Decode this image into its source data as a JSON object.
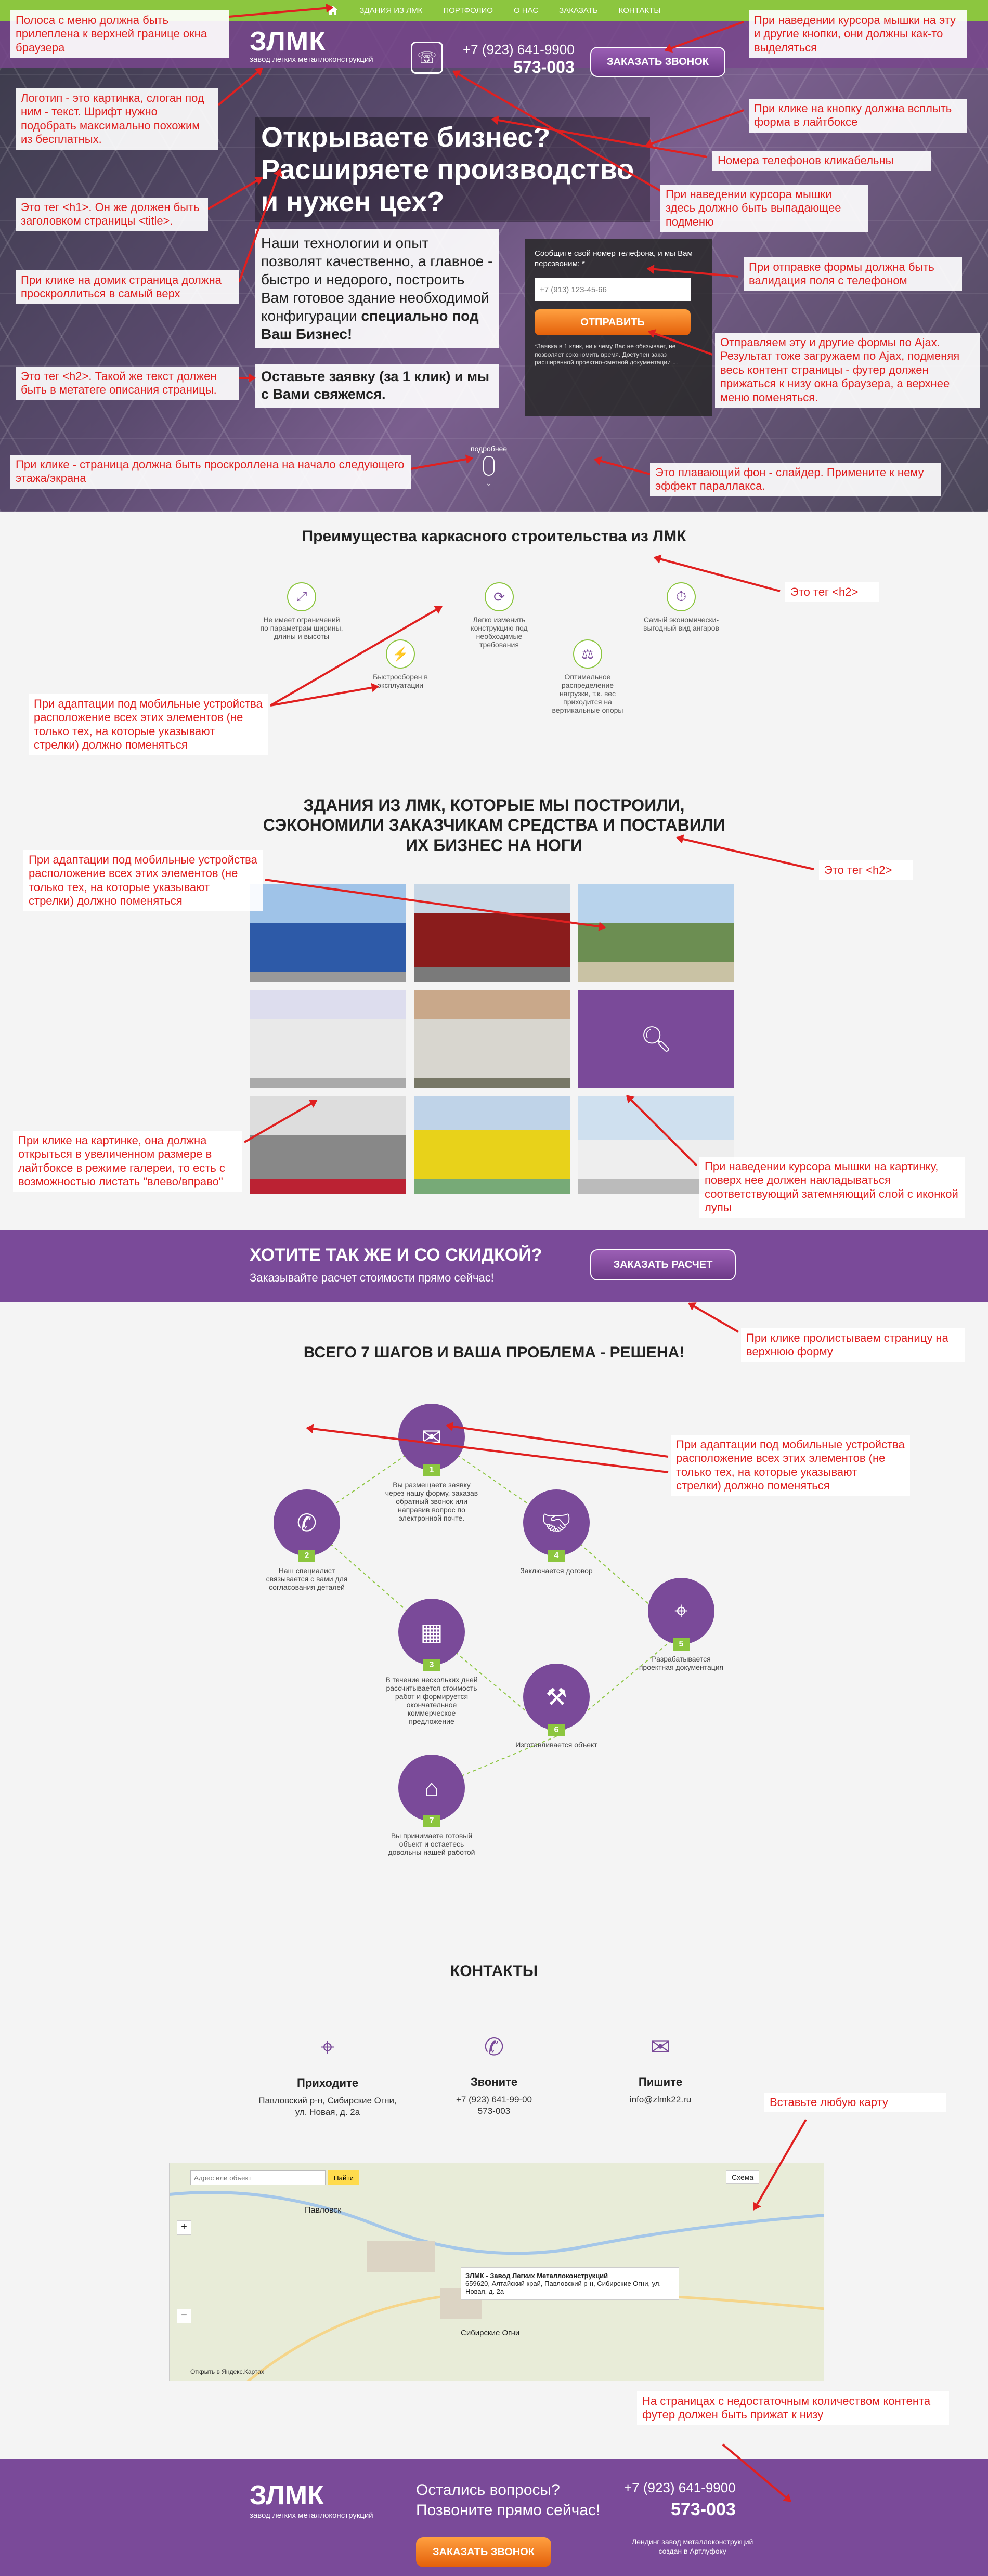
{
  "topnav": {
    "items": [
      "ЗДАНИЯ ИЗ ЛМК",
      "ПОРТФОЛИО",
      "О НАС",
      "ЗАКАЗАТЬ",
      "КОНТАКТЫ"
    ]
  },
  "header": {
    "logo_mark": "ЗЛМК",
    "slogan": "завод легких металлоконструкций",
    "phone1": "+7 (923) 641-9900",
    "phone2": "573-003",
    "call_button": "ЗАКАЗАТЬ ЗВОНОК"
  },
  "hero": {
    "h1": "Открываете бизнес? Расширяете производство и нужен цех?",
    "text1": "Наши технологии и опыт позволят качественно, а главное - быстро и недорого, построить Вам готовое здание необходимой конфигурации ",
    "text1_bold": "специально под Ваш Бизнес!",
    "text2": "Оставьте заявку (за 1 клик) и мы с Вами свяжемся.",
    "form_title": "Сообщите свой номер телефона, и мы Вам перезвоним: *",
    "form_placeholder": "+7 (913) 123-45-66",
    "form_button": "ОТПРАВИТЬ",
    "form_note": "*Заявка в 1 клик, ни к чему Вас не обязывает, не позволяет сэкономить время. Доступен заказ расширенной проектно-сметной документации ...",
    "scroll_label": "подробнее"
  },
  "advantages": {
    "title": "Преимущества каркасного строительства из ЛМК",
    "items": [
      "Не имеет ограничений по параметрам ширины, длины и высоты",
      "Быстросборен в эксплуатации",
      "Легко изменить конструкцию под необходимые требования",
      "Оптимальное распределение нагрузки, т.к. вес приходится на вертикальные опоры",
      "Самый экономически-выгодный вид ангаров"
    ]
  },
  "portfolio": {
    "title": "ЗДАНИЯ ИЗ ЛМК, КОТОРЫЕ МЫ ПОСТРОИЛИ, СЭКОНОМИЛИ ЗАКАЗЧИКАМ СРЕДСТВА И ПОСТАВИЛИ ИХ БИЗНЕС НА НОГИ"
  },
  "cta": {
    "title": "ХОТИТЕ ТАК ЖЕ И СО СКИДКОЙ?",
    "subtitle": "Заказывайте расчет стоимости прямо сейчас!",
    "button": "ЗАКАЗАТЬ РАСЧЕТ"
  },
  "steps": {
    "title": "ВСЕГО 7 ШАГОВ И ВАША ПРОБЛЕМА - РЕШЕНА!",
    "items": [
      {
        "num": "1",
        "text": "Вы размещаете заявку через нашу форму, заказав обратный звонок или направив вопрос по электронной почте."
      },
      {
        "num": "2",
        "text": "Наш специалист связывается с вами для согласования деталей"
      },
      {
        "num": "3",
        "text": "В течение нескольких дней рассчитывается стоимость работ и формируется окончательное коммерческое предложение"
      },
      {
        "num": "4",
        "text": "Заключается договор"
      },
      {
        "num": "5",
        "text": "Разрабатывается проектная документация"
      },
      {
        "num": "6",
        "text": "Изготавливается объект"
      },
      {
        "num": "7",
        "text": "Вы принимаете готовый объект и остаетесь довольны нашей работой"
      }
    ]
  },
  "contacts": {
    "title": "КОНТАКТЫ",
    "come_title": "Приходите",
    "come_value": "Павловский р-н, Сибирские Огни, ул. Новая, д. 2а",
    "call_title": "Звоните",
    "call_value": "+7 (923) 641-99-00\n573-003",
    "write_title": "Пишите",
    "write_value": "info@zlmk22.ru"
  },
  "map": {
    "search_placeholder": "Адрес или объект",
    "search_button": "Найти",
    "label_pavlovsk": "Павловск",
    "label_ogni": "Сибирские Огни",
    "popup_title": "ЗЛМК - Завод Легких Металлоконструкций",
    "popup_text": "659620, Алтайский край, Павловский р-н, Сибирские Огни, ул. Новая, д. 2а",
    "layers": "Схема",
    "footer_note": "Открыть в Яндекс.Картах"
  },
  "footer": {
    "logo_mark": "ЗЛМК",
    "slogan": "завод легких металлоконструкций",
    "question": "Остались вопросы?\nПозвоните прямо сейчас!",
    "phone1": "+7 (923) 641-9900",
    "phone2": "573-003",
    "call_button": "ЗАКАЗАТЬ ЗВОНОК",
    "developer": "Лендинг завод металлоконструкций\nсоздан в Артлуфоку"
  },
  "annotations": [
    "Полоса с меню должна быть прилеплена к верхней границе окна браузера",
    "При наведении курсора мышки на эту и другие кнопки, они должны как-то выделяться",
    "Логотип - это картинка, слоган под ним - текст. Шрифт нужно подобрать максимально похожим из бесплатных.",
    "При клике на кнопку должна всплыть форма в лайтбоксе",
    "Номера телефонов кликабельны",
    "Это тег <h1>. Он же должен быть заголовком страницы <title>.",
    "При наведении курсора мышки здесь должно быть выпадающее подменю",
    "При клике на домик страница должна проскроллиться в самый верх",
    "При отправке формы должна быть валидация поля с телефоном",
    "Это тег <h2>. Такой же текст должен быть в метатеге описания страницы.",
    "Отправляем эту и другие формы по Ajax. Результат тоже загружаем по Ajax, подменяя весь контент страницы - футер должен прижаться к низу окна браузера, а верхнее меню поменяться.",
    "При клике - страница должна быть проскроллена на начало следующего этажа/экрана",
    "Это плавающий фон - слайдер. Примените к нему эффект параллакса.",
    "Это тег <h2>",
    "При адаптации под мобильные устройства расположение всех этих элементов (не только тех, на которые указывают стрелки) должно поменяться",
    "При адаптации под мобильные устройства расположение всех этих элементов (не только тех, на которые указывают стрелки) должно поменяться",
    "Это тег <h2>",
    "При клике на картинке, она должна открыться в увеличенном размере в лайтбоксе в режиме галереи, то есть с возможностью листать \"влево/вправо\"",
    "При наведении курсора мышки на картинку, поверх нее должен накладываться соответствующий затемняющий слой с иконкой лупы",
    "При клике пролистываем страницу на верхнюю форму",
    "При адаптации под мобильные устройства расположение всех этих элементов (не только тех, на которые указывают стрелки) должно поменяться",
    "Вставьте любую карту",
    "На страницах с недостаточным количеством контента футер должен быть прижат к низу"
  ],
  "colors": {
    "nav_green": "#8cc63f",
    "brand_purple": "#7a4a99",
    "accent_orange": "#e4600a",
    "annotation_red": "#e02020"
  }
}
